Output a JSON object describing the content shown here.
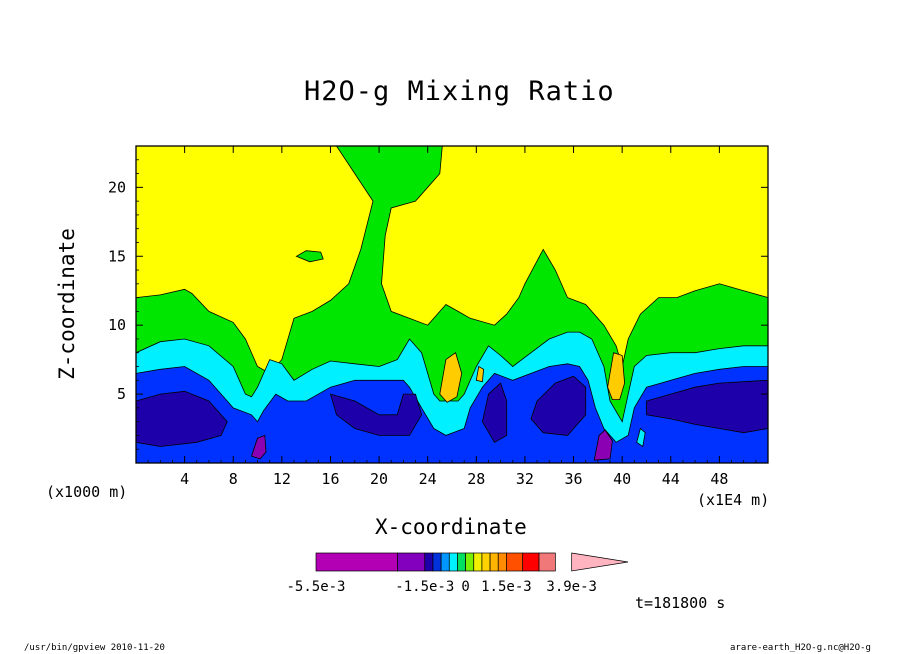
{
  "chart_data": {
    "type": "heatmap",
    "title": "H2O-g Mixing Ratio",
    "xlabel": "X-coordinate",
    "ylabel": "Z-coordinate",
    "x_unit_note": "(x1000 m)",
    "x_scale_note": "(x1E4 m)",
    "xlim": [
      0,
      52
    ],
    "ylim": [
      0,
      23
    ],
    "x_ticks": [
      "4",
      "8",
      "12",
      "16",
      "20",
      "24",
      "28",
      "32",
      "36",
      "40",
      "44",
      "48"
    ],
    "y_ticks": [
      "5",
      "10",
      "15",
      "20"
    ],
    "x_tick_values": [
      4,
      8,
      12,
      16,
      20,
      24,
      28,
      32,
      36,
      40,
      44,
      48
    ],
    "y_tick_values": [
      5,
      10,
      15,
      20
    ],
    "colorbar": {
      "labels": [
        "-5.5e-3",
        "-1.5e-3",
        "0",
        "1.5e-3",
        "3.9e-3"
      ],
      "levels": [
        -0.0055,
        -0.0025,
        -0.0015,
        -0.0012,
        -0.0009,
        -0.0006,
        -0.0003,
        0.0,
        0.0003,
        0.0006,
        0.0009,
        0.0012,
        0.0015,
        0.0021,
        0.0027,
        0.0033,
        0.0039,
        0.0045
      ],
      "colors": [
        "#b400b4",
        "#8200be",
        "#1e00aa",
        "#0032dc",
        "#0096ff",
        "#00f0ff",
        "#00e060",
        "#78f000",
        "#f0f000",
        "#ffd200",
        "#ffb400",
        "#ff8c00",
        "#ff5000",
        "#ff0000",
        "#f07878"
      ],
      "extend_color": "#ffb4c0"
    },
    "time_label": "t=181800 s",
    "fill_colors": {
      "background_top": "#ffff00",
      "green": "#00e600",
      "cyan": "#00f0ff",
      "blue": "#0032ff",
      "navy": "#1e00aa",
      "purple": "#8c00b4",
      "orange": "#ffcc00"
    }
  },
  "footer": {
    "left": "/usr/bin/gpview   2010-11-20",
    "right": "arare-earth_H2O-g.nc@H2O-g"
  }
}
